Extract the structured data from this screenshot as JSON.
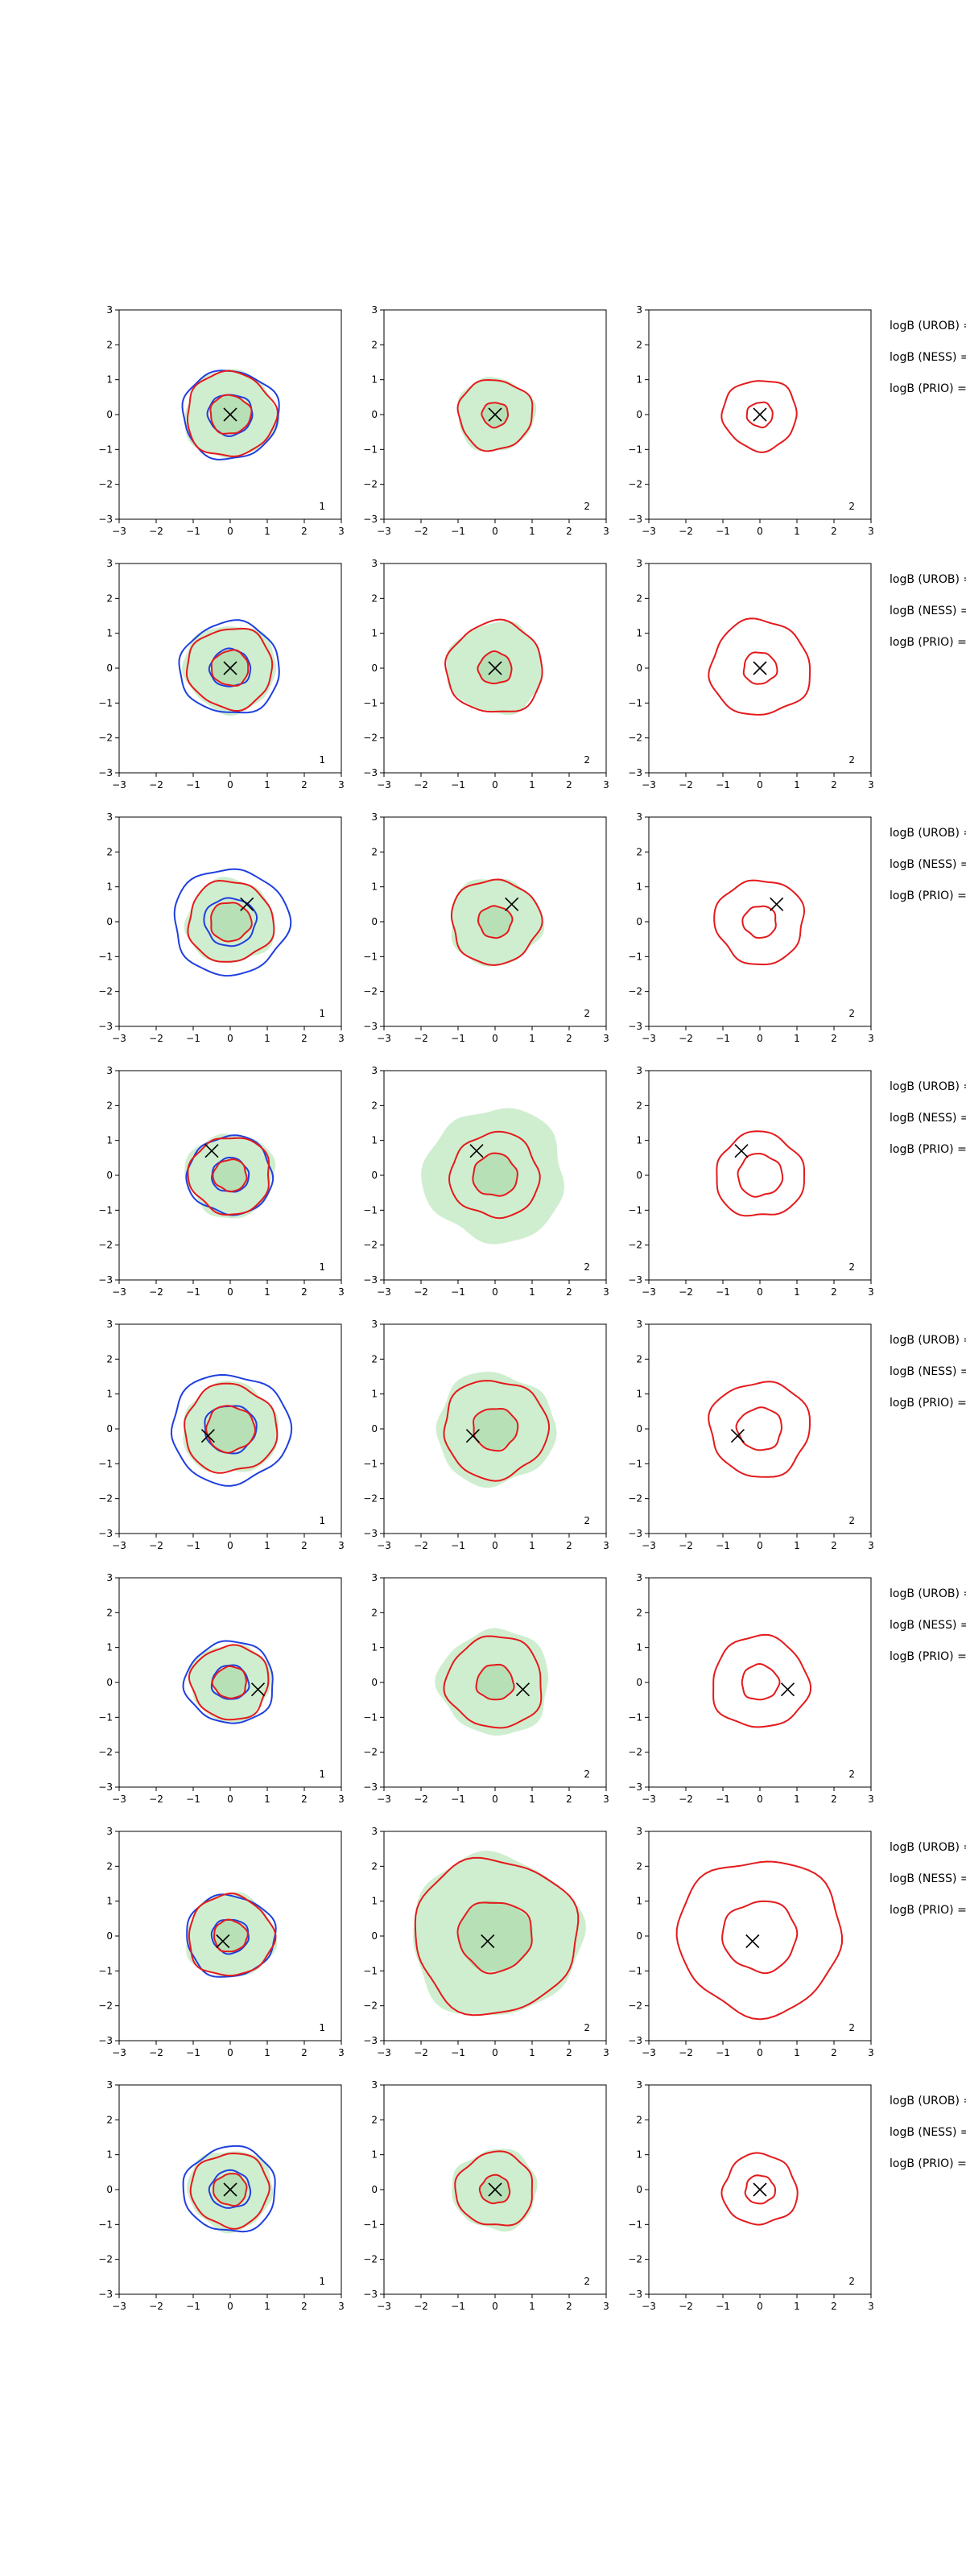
{
  "figure": {
    "description_hidden": "",
    "axis_ticks": [
      "−3",
      "−2",
      "−1",
      "0",
      "1",
      "2",
      "3"
    ],
    "colors": {
      "fill": "#cfeecf",
      "fill_dark": "#b7e0b7",
      "red": "#e41a1c",
      "blue": "#1f3fe0",
      "marker": "#000000",
      "axes": "#000000"
    }
  },
  "chart_data": [
    {
      "row": 1,
      "type": "contour",
      "xlim": [
        -3,
        3
      ],
      "ylim": [
        -3,
        3
      ],
      "truth": [
        0.0,
        0.0
      ],
      "panels": [
        {
          "label": "1",
          "fill": [
            1.25
          ],
          "red": [
            1.2,
            0.55
          ],
          "blue": [
            1.3,
            0.6
          ]
        },
        {
          "label": "2",
          "fill": [
            1.05
          ],
          "red": [
            1.0,
            0.35
          ],
          "blue": []
        },
        {
          "label": "2",
          "fill": [],
          "red": [
            1.0,
            0.35
          ],
          "blue": []
        }
      ],
      "legend": [
        "logB (UROB) =",
        "logB (NESS) =",
        "logB (PRIO) ="
      ]
    },
    {
      "row": 2,
      "type": "contour",
      "xlim": [
        -3,
        3
      ],
      "ylim": [
        -3,
        3
      ],
      "truth": [
        0.0,
        0.0
      ],
      "panels": [
        {
          "label": "1",
          "fill": [
            1.25
          ],
          "red": [
            1.15,
            0.5
          ],
          "blue": [
            1.35,
            0.55
          ]
        },
        {
          "label": "2",
          "fill": [
            1.3
          ],
          "red": [
            1.3,
            0.45
          ],
          "blue": []
        },
        {
          "label": "2",
          "fill": [],
          "red": [
            1.35,
            0.45
          ],
          "blue": []
        }
      ],
      "legend": [
        "logB (UROB) =",
        "logB (NESS) =",
        "logB (PRIO) ="
      ]
    },
    {
      "row": 3,
      "type": "contour",
      "xlim": [
        -3,
        3
      ],
      "ylim": [
        -3,
        3
      ],
      "truth": [
        0.45,
        0.5
      ],
      "panels": [
        {
          "label": "1",
          "fill": [
            1.2
          ],
          "red": [
            1.15,
            0.55
          ],
          "blue": [
            1.55,
            0.7
          ]
        },
        {
          "label": "2",
          "fill": [
            1.25
          ],
          "red": [
            1.2,
            0.45
          ],
          "blue": []
        },
        {
          "label": "2",
          "fill": [],
          "red": [
            1.2,
            0.45
          ],
          "blue": []
        }
      ],
      "legend": [
        "logB (UROB) =",
        "logB (NESS) =",
        "logB (PRIO) ="
      ]
    },
    {
      "row": 4,
      "type": "contour",
      "xlim": [
        -3,
        3
      ],
      "ylim": [
        -3,
        3
      ],
      "truth": [
        -0.5,
        0.7
      ],
      "panels": [
        {
          "label": "1",
          "fill": [
            1.2
          ],
          "red": [
            1.1,
            0.45
          ],
          "blue": [
            1.15,
            0.5
          ]
        },
        {
          "label": "2",
          "fill": [
            1.9
          ],
          "red": [
            1.2,
            0.6
          ],
          "blue": []
        },
        {
          "label": "2",
          "fill": [],
          "red": [
            1.2,
            0.6
          ],
          "blue": []
        }
      ],
      "legend": [
        "logB (UROB) =",
        "logB (NESS) =",
        "logB (PRIO) ="
      ]
    },
    {
      "row": 5,
      "type": "contour",
      "xlim": [
        -3,
        3
      ],
      "ylim": [
        -3,
        3
      ],
      "truth": [
        -0.6,
        -0.2
      ],
      "panels": [
        {
          "label": "1",
          "fill": [
            1.3
          ],
          "red": [
            1.25,
            0.65
          ],
          "blue": [
            1.6,
            0.7
          ]
        },
        {
          "label": "2",
          "fill": [
            1.6
          ],
          "red": [
            1.4,
            0.6
          ],
          "blue": []
        },
        {
          "label": "2",
          "fill": [],
          "red": [
            1.35,
            0.6
          ],
          "blue": []
        }
      ],
      "legend": [
        "logB (UROB) =",
        "logB (NESS) =",
        "logB (PRIO) ="
      ]
    },
    {
      "row": 6,
      "type": "contour",
      "xlim": [
        -3,
        3
      ],
      "ylim": [
        -3,
        3
      ],
      "truth": [
        0.75,
        -0.2
      ],
      "panels": [
        {
          "label": "1",
          "fill": [
            1.1
          ],
          "red": [
            1.05,
            0.45
          ],
          "blue": [
            1.2,
            0.5
          ]
        },
        {
          "label": "2",
          "fill": [
            1.5
          ],
          "red": [
            1.3,
            0.5
          ],
          "blue": []
        },
        {
          "label": "2",
          "fill": [],
          "red": [
            1.3,
            0.5
          ],
          "blue": []
        }
      ],
      "legend": [
        "logB (UROB) =",
        "logB (NESS) =",
        "logB (PRIO) ="
      ]
    },
    {
      "row": 7,
      "type": "contour",
      "xlim": [
        -3,
        3
      ],
      "ylim": [
        -3,
        3
      ],
      "truth": [
        -0.2,
        -0.15
      ],
      "panels": [
        {
          "label": "1",
          "fill": [
            1.2
          ],
          "red": [
            1.15,
            0.45
          ],
          "blue": [
            1.2,
            0.5
          ]
        },
        {
          "label": "2",
          "fill": [
            2.3
          ],
          "red": [
            2.2,
            1.0
          ],
          "blue": []
        },
        {
          "label": "2",
          "fill": [],
          "red": [
            2.2,
            1.0
          ],
          "blue": []
        }
      ],
      "legend": [
        "logB (UROB) =",
        "logB (NESS) =",
        "logB (PRIO) ="
      ]
    },
    {
      "row": 8,
      "type": "contour",
      "xlim": [
        -3,
        3
      ],
      "ylim": [
        -3,
        3
      ],
      "truth": [
        0.0,
        0.0
      ],
      "panels": [
        {
          "label": "1",
          "fill": [
            1.15
          ],
          "red": [
            1.05,
            0.45
          ],
          "blue": [
            1.25,
            0.55
          ]
        },
        {
          "label": "2",
          "fill": [
            1.15
          ],
          "red": [
            1.05,
            0.4
          ],
          "blue": []
        },
        {
          "label": "2",
          "fill": [],
          "red": [
            1.0,
            0.4
          ],
          "blue": []
        }
      ],
      "legend": [
        "logB (UROB) =",
        "logB (NESS) =",
        "logB (PRIO) ="
      ]
    }
  ]
}
